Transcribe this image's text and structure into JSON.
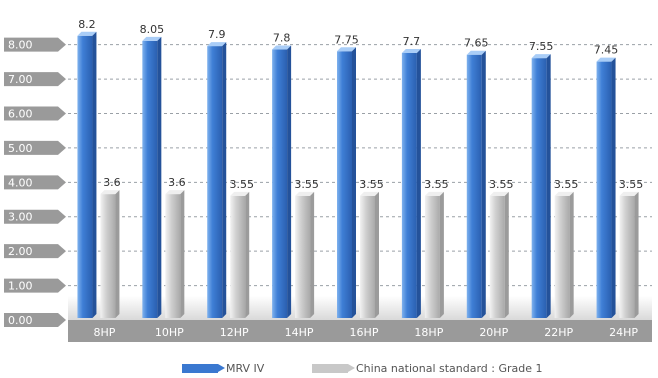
{
  "chart_data": {
    "type": "bar",
    "categories": [
      "8HP",
      "10HP",
      "12HP",
      "14HP",
      "16HP",
      "18HP",
      "20HP",
      "22HP",
      "24HP"
    ],
    "series": [
      {
        "name": "MRV IV",
        "values": [
          8.2,
          8.05,
          7.9,
          7.8,
          7.75,
          7.7,
          7.65,
          7.55,
          7.45
        ],
        "labels": [
          "8.2",
          "8.05",
          "7.9",
          "7.8",
          "7.75",
          "7.7",
          "7.65",
          "7.55",
          "7.45"
        ],
        "color": "#3a78d0"
      },
      {
        "name": "China national standard : Grade 1",
        "values": [
          3.6,
          3.6,
          3.55,
          3.55,
          3.55,
          3.55,
          3.55,
          3.55,
          3.55
        ],
        "labels": [
          "3.6",
          "3.6",
          "3.55",
          "3.55",
          "3.55",
          "3.55",
          "3.55",
          "3.55",
          "3.55"
        ],
        "color": "#c8c8c8"
      }
    ],
    "yticks": [
      "0.00",
      "1.00",
      "2.00",
      "3.00",
      "4.00",
      "5.00",
      "6.00",
      "7.00",
      "8.00"
    ],
    "ylim": [
      0,
      8.6
    ],
    "grid": true,
    "legend_position": "bottom"
  }
}
